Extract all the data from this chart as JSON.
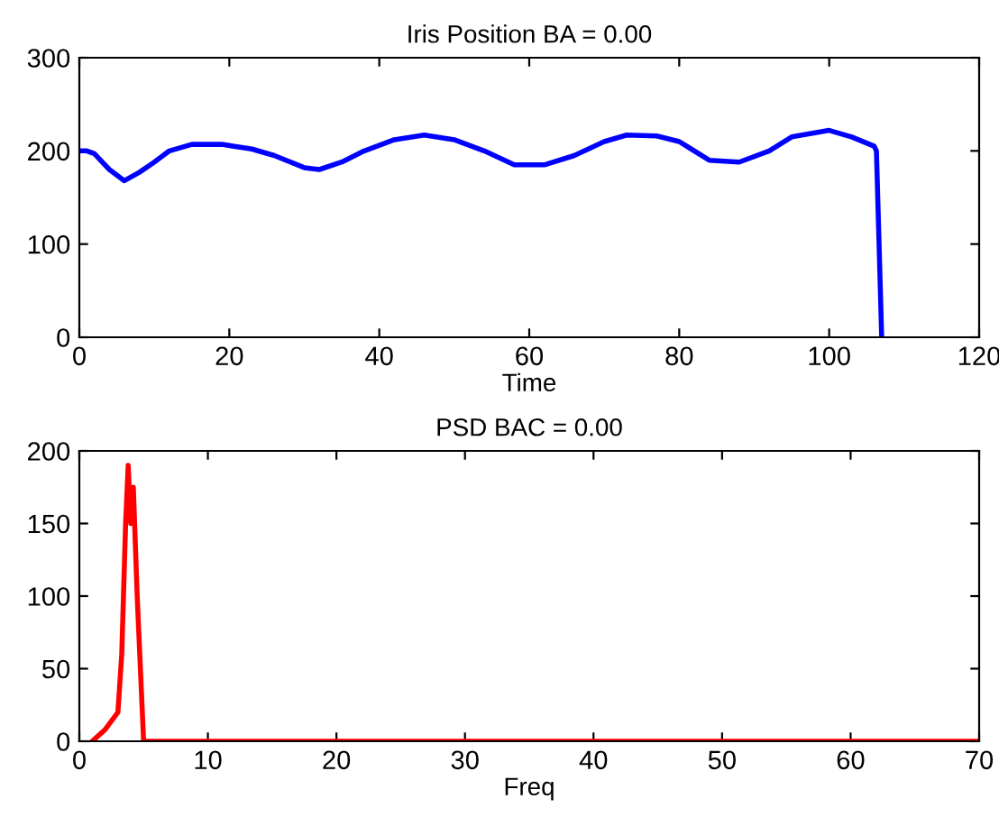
{
  "chart_data": [
    {
      "type": "line",
      "title": "Iris Position BA = 0.00",
      "xlabel": "Time",
      "xlim": [
        0,
        120
      ],
      "xticks": [
        0,
        20,
        40,
        60,
        80,
        100,
        120
      ],
      "ylim": [
        0,
        300
      ],
      "yticks": [
        0,
        100,
        200,
        300
      ],
      "grid": false,
      "series": [
        {
          "color": "#0000ff",
          "x": [
            0,
            1,
            2,
            4,
            6,
            8,
            10,
            12,
            15,
            19,
            23,
            26,
            30,
            32,
            35,
            38,
            42,
            46,
            50,
            54,
            58,
            62,
            66,
            70,
            73,
            77,
            80,
            84,
            88,
            92,
            95,
            100,
            103,
            106,
            106.3,
            107
          ],
          "values": [
            200,
            200,
            197,
            180,
            168,
            177,
            188,
            200,
            207,
            207,
            202,
            195,
            182,
            180,
            188,
            200,
            212,
            217,
            212,
            200,
            185,
            185,
            195,
            210,
            217,
            216,
            210,
            190,
            188,
            200,
            215,
            222,
            215,
            205,
            200,
            0
          ]
        }
      ]
    },
    {
      "type": "line",
      "title": "PSD BAC = 0.00",
      "xlabel": "Freq",
      "xlim": [
        0,
        70
      ],
      "xticks": [
        0,
        10,
        20,
        30,
        40,
        50,
        60,
        70
      ],
      "ylim": [
        0,
        200
      ],
      "yticks": [
        0,
        50,
        100,
        150,
        200
      ],
      "grid": false,
      "series": [
        {
          "color": "#ff0000",
          "x": [
            1,
            2,
            3,
            3.3,
            3.6,
            3.8,
            4.0,
            4.2,
            4.5,
            5,
            70
          ],
          "values": [
            0,
            8,
            20,
            60,
            150,
            190,
            150,
            175,
            100,
            0,
            0
          ]
        }
      ]
    }
  ]
}
